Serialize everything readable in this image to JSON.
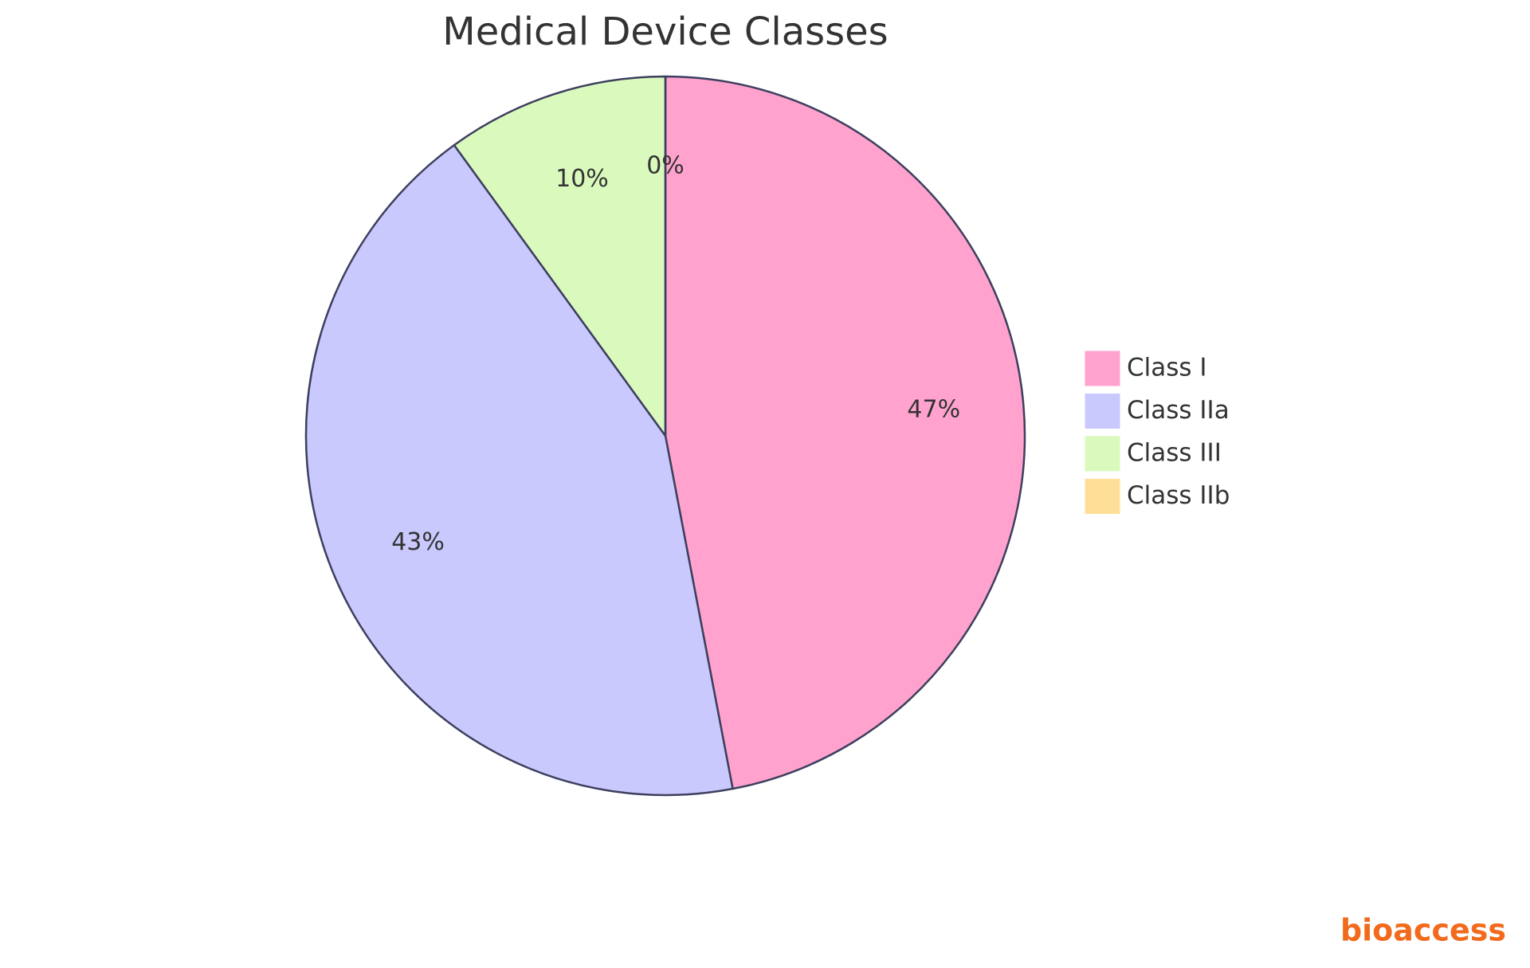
{
  "chart_data": {
    "type": "pie",
    "title": "Medical Device Classes",
    "categories": [
      "Class I",
      "Class IIa",
      "Class III",
      "Class IIb"
    ],
    "values": [
      47,
      43,
      10,
      0
    ],
    "value_labels": [
      "47%",
      "43%",
      "10%",
      "0%"
    ],
    "colors": [
      "#ffa3ce",
      "#c9c9fd",
      "#dafabd",
      "#ffdf97"
    ],
    "legend": "right"
  },
  "logo": "bioaccess"
}
